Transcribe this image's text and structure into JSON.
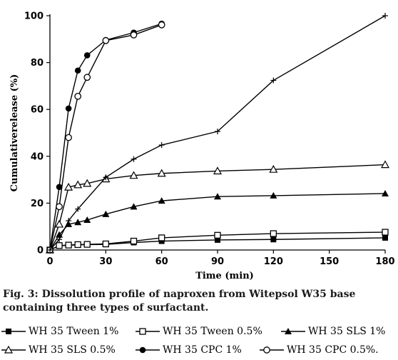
{
  "chart_data": {
    "type": "line",
    "xlabel": "Time (min)",
    "ylabel": "Cumulativerelease (%)",
    "xlim": [
      0,
      180
    ],
    "ylim": [
      0,
      100
    ],
    "xticks": [
      "0",
      "30",
      "60",
      "90",
      "120",
      "150",
      "180"
    ],
    "yticks": [
      "0",
      "20",
      "40",
      "60",
      "80",
      "100"
    ],
    "grid": false,
    "legend_position": "bottom",
    "series": [
      {
        "name": "WH 35 Tween 1%",
        "marker": "square-filled",
        "x": [
          0,
          5,
          10,
          15,
          20,
          30,
          45,
          60,
          90,
          120,
          180
        ],
        "y": [
          0,
          1.8,
          2.0,
          2.2,
          2.3,
          2.4,
          3.2,
          3.8,
          4.3,
          4.5,
          5.2
        ]
      },
      {
        "name": "WH 35 Tween 0.5%",
        "marker": "square-open",
        "x": [
          0,
          5,
          10,
          15,
          20,
          30,
          45,
          60,
          90,
          120,
          180
        ],
        "y": [
          0,
          1.9,
          2.1,
          2.3,
          2.4,
          2.6,
          3.8,
          5.2,
          6.3,
          7.0,
          7.6
        ]
      },
      {
        "name": "WH 35 SLS 1%",
        "marker": "triangle-filled",
        "x": [
          0,
          5,
          10,
          15,
          20,
          30,
          45,
          60,
          90,
          120,
          180
        ],
        "y": [
          0,
          6.5,
          11.0,
          11.8,
          12.8,
          15.3,
          18.5,
          21.0,
          22.8,
          23.2,
          24.1
        ]
      },
      {
        "name": "WH 35 SLS 0.5%",
        "marker": "triangle-open",
        "x": [
          0,
          5,
          10,
          15,
          20,
          30,
          45,
          60,
          90,
          120,
          180
        ],
        "y": [
          0,
          11.0,
          26.8,
          27.8,
          28.4,
          30.3,
          31.8,
          32.7,
          33.7,
          34.4,
          36.4
        ]
      },
      {
        "name": "WH 35 CPC 1%",
        "marker": "circle-filled",
        "x": [
          0,
          5,
          10,
          15,
          20,
          30,
          45,
          60
        ],
        "y": [
          0,
          26.9,
          60.4,
          76.6,
          83.1,
          89.6,
          92.8,
          96.6
        ]
      },
      {
        "name": "WH 35 CPC 0.5%.",
        "marker": "circle-open",
        "x": [
          0,
          5,
          10,
          15,
          20,
          30,
          45,
          60
        ],
        "y": [
          0,
          18.5,
          48.0,
          65.6,
          73.7,
          89.4,
          91.8,
          96.1
        ]
      },
      {
        "name": "",
        "marker": "plus",
        "x": [
          0,
          5,
          10,
          15,
          30,
          45,
          60,
          90,
          120,
          180
        ],
        "y": [
          0,
          4.5,
          12.5,
          17.5,
          31.0,
          38.8,
          44.8,
          50.6,
          72.4,
          100
        ]
      }
    ]
  },
  "caption": "Fig. 3: Dissolution profile of naproxen from Witepsol W35 base containing three types of surfactant.",
  "legend": {
    "items": [
      {
        "label": "WH 35 Tween 1%",
        "marker": "square-filled"
      },
      {
        "label": "WH 35 Tween 0.5%",
        "marker": "square-open"
      },
      {
        "label": "WH 35 SLS 1%",
        "marker": "triangle-filled"
      },
      {
        "label": "WH 35 SLS 0.5%",
        "marker": "triangle-open"
      },
      {
        "label": "WH 35 CPC 1%",
        "marker": "circle-filled"
      },
      {
        "label": "WH 35 CPC 0.5%.",
        "marker": "circle-open"
      }
    ]
  }
}
